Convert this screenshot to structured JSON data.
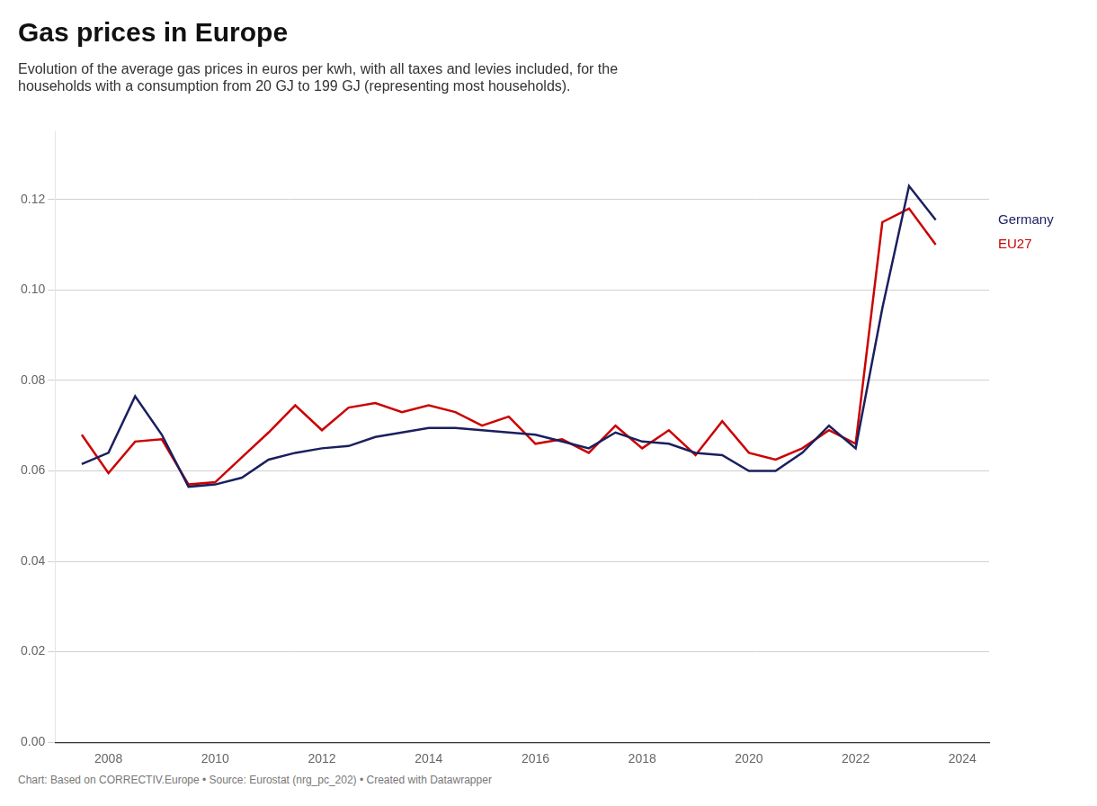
{
  "chart_data": {
    "type": "line",
    "title": "Gas prices in Europe",
    "subtitle": "Evolution of the average gas prices in euros per kwh, with all taxes and levies included, for the\nhouseholds with a consumption from 20 GJ to 199 GJ (representing most households).",
    "footnote": "Chart: Based on CORRECTIV.Europe • Source: Eurostat (nrg_pc_202) • Created with Datawrapper",
    "x": [
      2007.5,
      2008.0,
      2008.5,
      2009.0,
      2009.5,
      2010.0,
      2010.5,
      2011.0,
      2011.5,
      2012.0,
      2012.5,
      2013.0,
      2013.5,
      2014.0,
      2014.5,
      2015.0,
      2015.5,
      2016.0,
      2016.5,
      2017.0,
      2017.5,
      2018.0,
      2018.5,
      2019.0,
      2019.5,
      2020.0,
      2020.5,
      2021.0,
      2021.5,
      2022.0,
      2022.5,
      2023.0,
      2023.5
    ],
    "series": [
      {
        "name": "Germany",
        "color": "#1a1f5e",
        "values": [
          0.0615,
          0.064,
          0.0765,
          0.068,
          0.0565,
          0.057,
          0.0585,
          0.0625,
          0.064,
          0.065,
          0.0655,
          0.0675,
          0.0685,
          0.0695,
          0.0695,
          0.069,
          0.0685,
          0.068,
          0.0665,
          0.065,
          0.0685,
          0.0665,
          0.066,
          0.064,
          0.0635,
          0.06,
          0.06,
          0.064,
          0.07,
          0.065,
          0.096,
          0.123,
          0.1155
        ]
      },
      {
        "name": "EU27",
        "color": "#cc0000",
        "values": [
          0.068,
          0.0595,
          0.0665,
          0.067,
          0.057,
          0.0575,
          0.063,
          0.0685,
          0.0745,
          0.069,
          0.074,
          0.075,
          0.073,
          0.0745,
          0.073,
          0.07,
          0.072,
          0.066,
          0.067,
          0.064,
          0.07,
          0.065,
          0.069,
          0.0635,
          0.071,
          0.064,
          0.0625,
          0.065,
          0.069,
          0.066,
          0.115,
          0.118,
          0.11
        ]
      }
    ],
    "xlim": [
      2007.0,
      2024.5
    ],
    "ylim": [
      0.0,
      0.135
    ],
    "xticks": [
      2008,
      2010,
      2012,
      2014,
      2016,
      2018,
      2020,
      2022,
      2024
    ],
    "yticks": [
      {
        "value": 0.0,
        "label": "0.00"
      },
      0.02,
      0.04,
      0.06,
      0.08,
      {
        "value": 0.1,
        "label": "0.10"
      },
      0.12
    ],
    "grid": true
  }
}
